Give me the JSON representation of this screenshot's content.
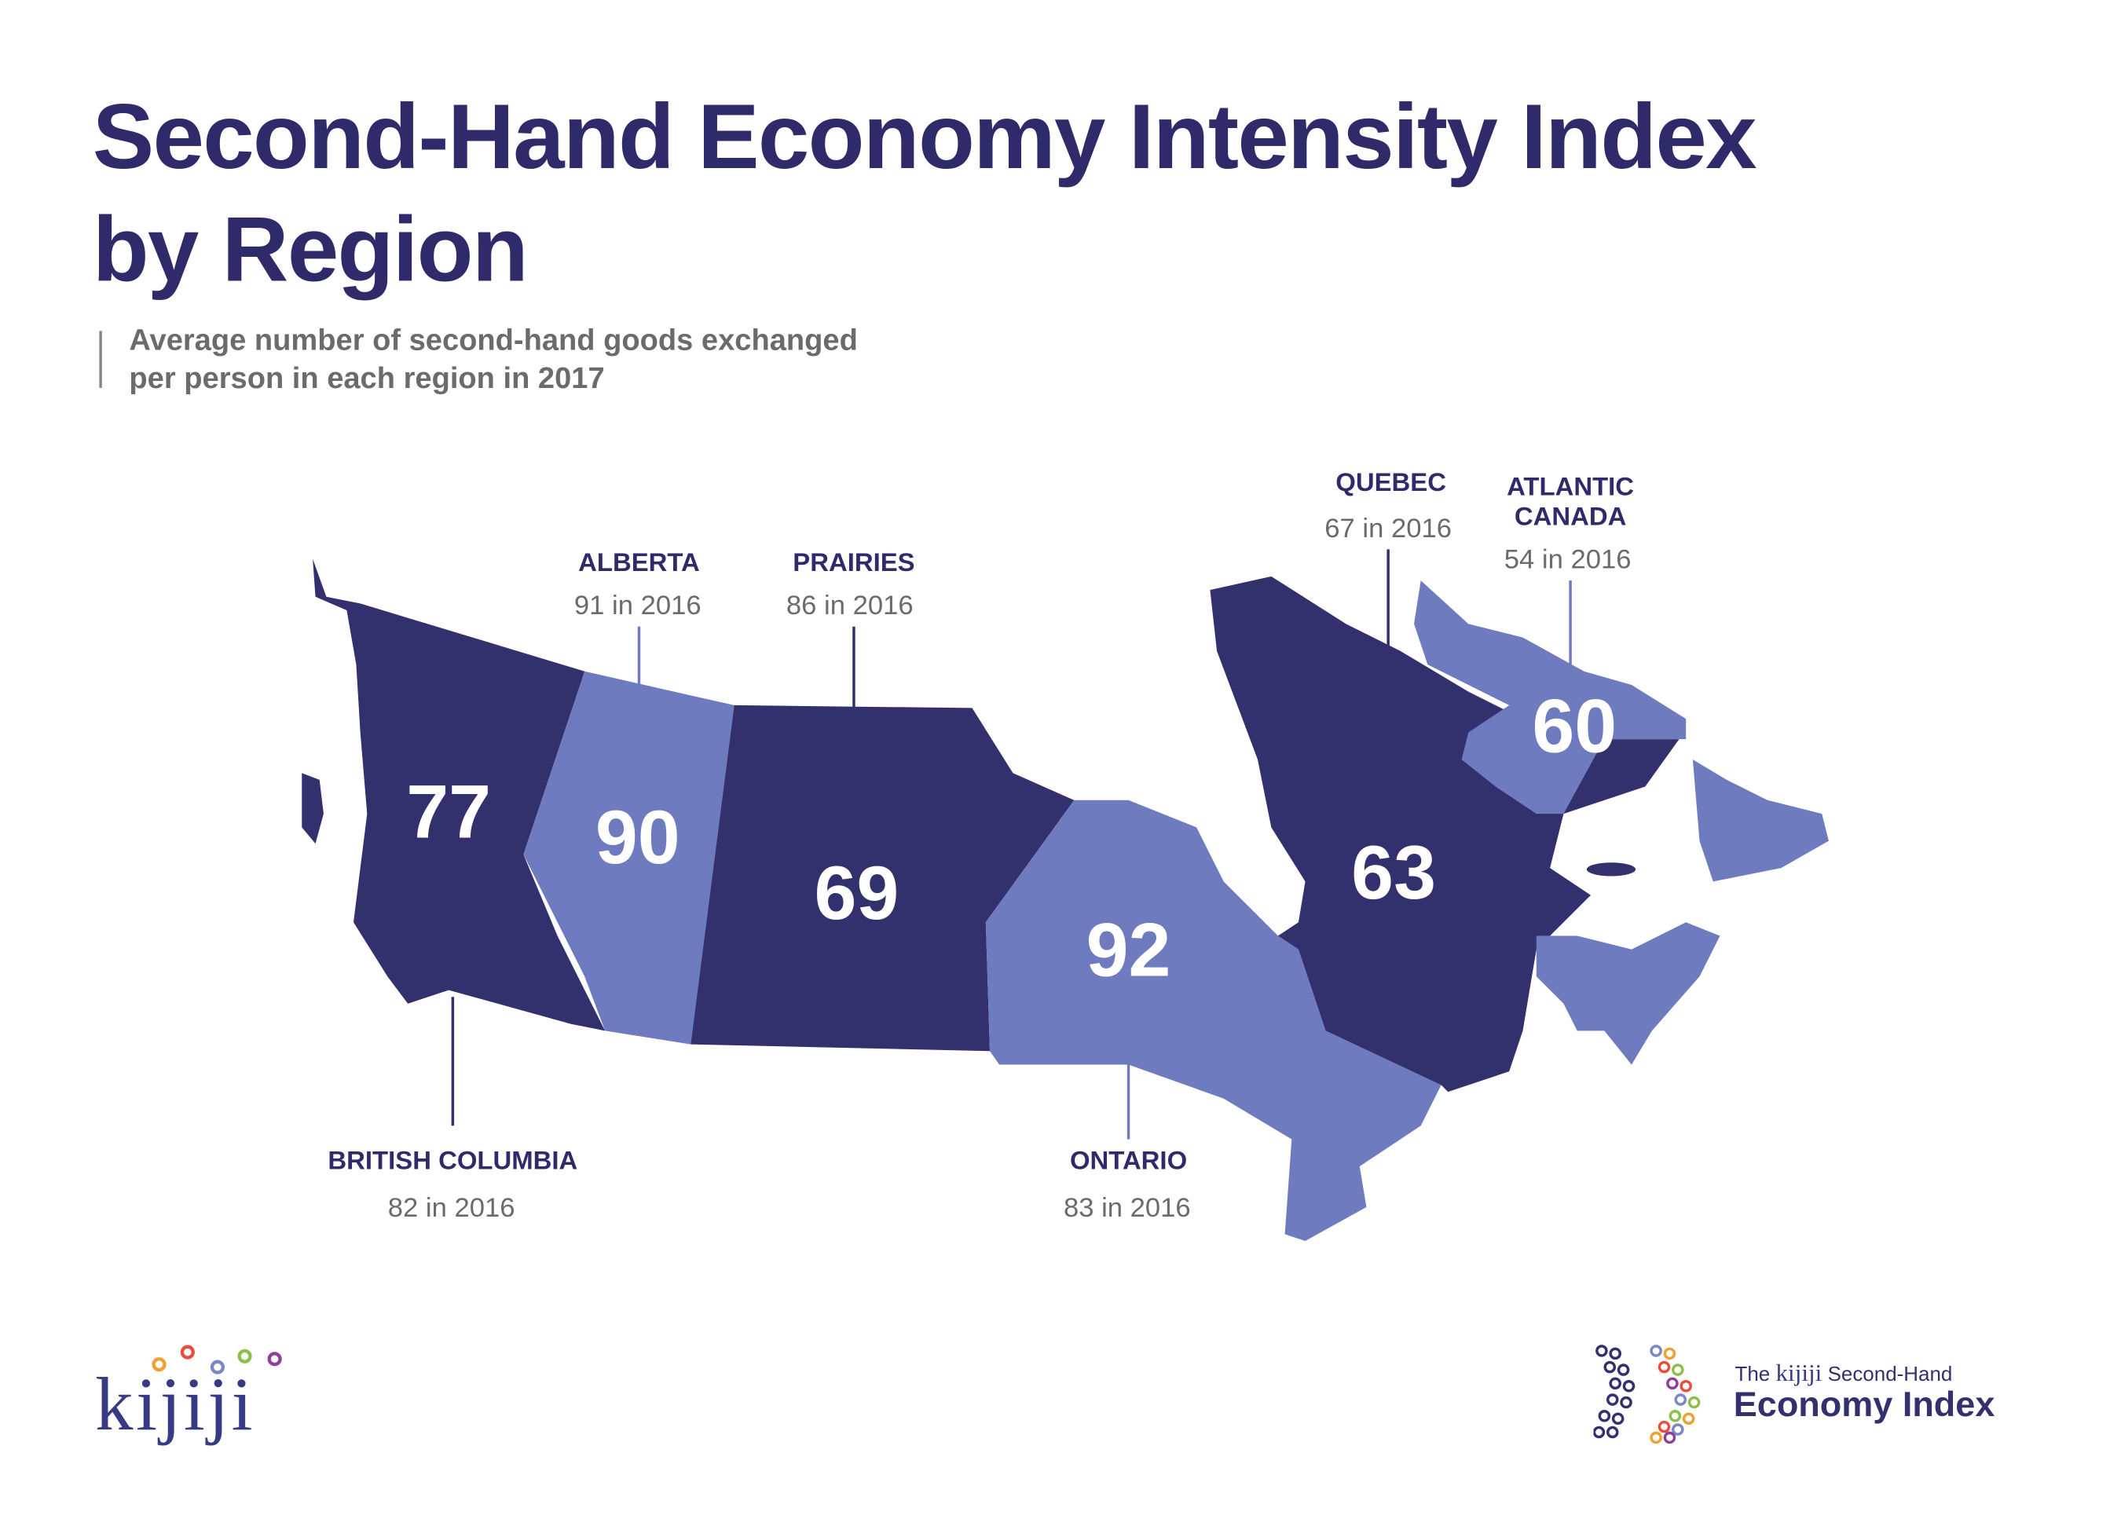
{
  "title_line1": "Second-Hand Economy Intensity Index",
  "title_line2": "by Region",
  "subtitle_line1": "Average number of second-hand goods exchanged",
  "subtitle_line2": "per person in each region in 2017",
  "colors": {
    "dark": "#33306e",
    "light": "#6f7bbf",
    "title": "#2f2b6b",
    "grey": "#6b6b6e"
  },
  "regions": {
    "bc": {
      "name": "BRITISH COLUMBIA",
      "value": "77",
      "prev": "82 in 2016"
    },
    "alberta": {
      "name": "ALBERTA",
      "value": "90",
      "prev": "91 in 2016"
    },
    "prairies": {
      "name": "PRAIRIES",
      "value": "69",
      "prev": "86 in 2016"
    },
    "ontario": {
      "name": "ONTARIO",
      "value": "92",
      "prev": "83 in 2016"
    },
    "quebec": {
      "name": "QUEBEC",
      "value": "63",
      "prev": "67 in 2016"
    },
    "atlantic": {
      "name_line1": "ATLANTIC",
      "name_line2": "CANADA",
      "value": "60",
      "prev": "54 in 2016"
    }
  },
  "logos": {
    "kijiji": "kijiji",
    "index_line1_prefix": "The",
    "index_brand": "kijiji",
    "index_line1_suffix": "Second-Hand",
    "index_line2": "Economy Index"
  }
}
